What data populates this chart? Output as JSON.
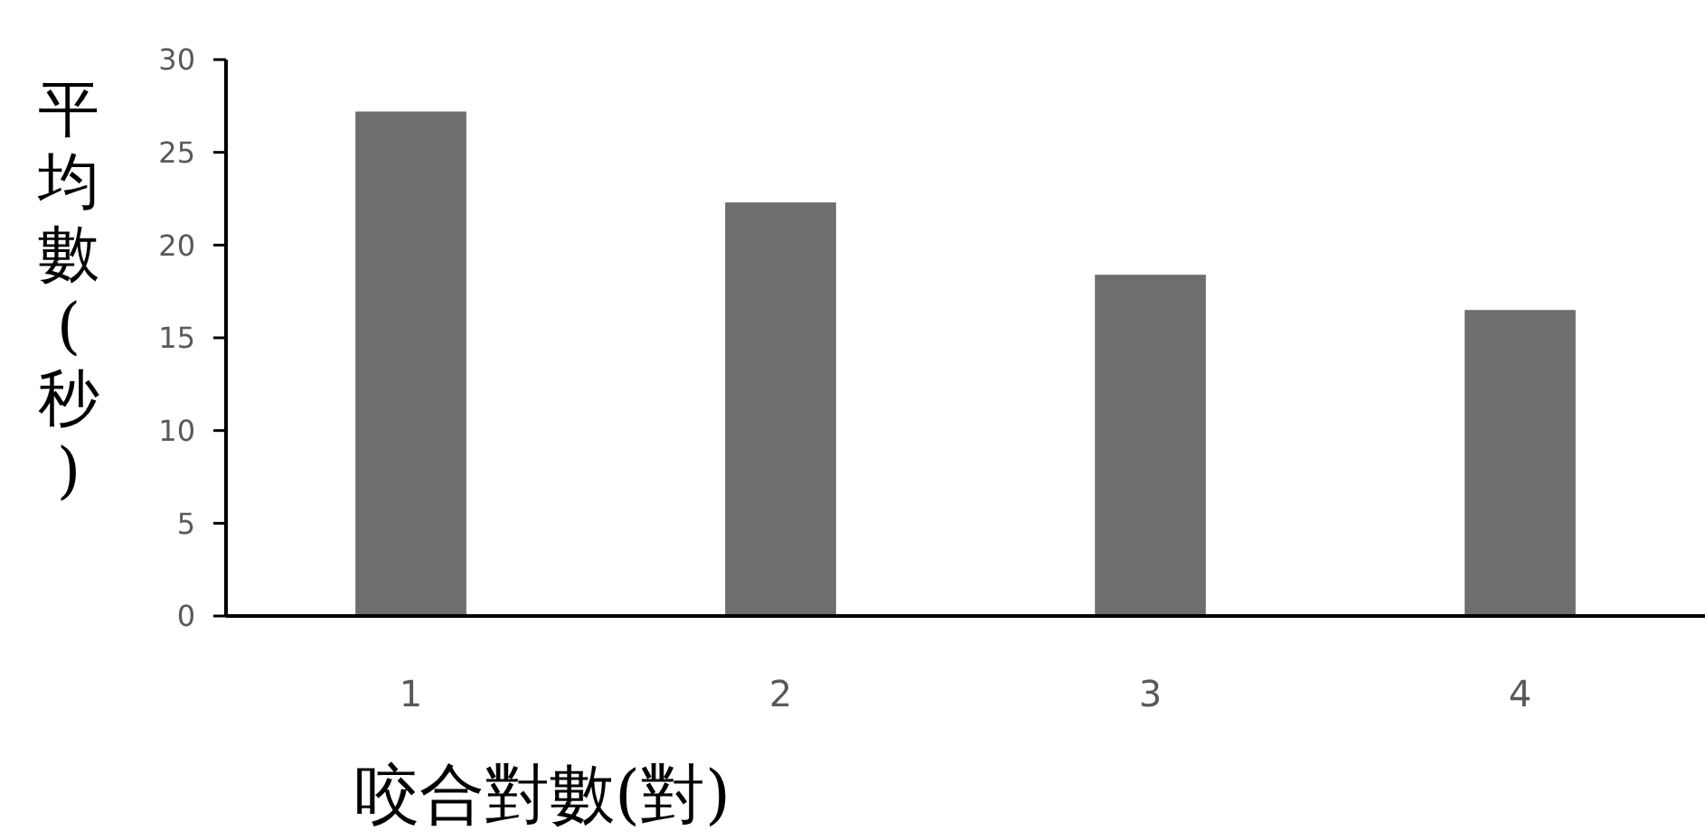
{
  "chart_data": {
    "type": "bar",
    "xlabel": "咬合對數(對)",
    "ylabel": "平均數(秒)",
    "categories": [
      "1",
      "2",
      "3",
      "4"
    ],
    "values": [
      27.2,
      22.3,
      18.4,
      16.5
    ],
    "color": "#6e6e6e",
    "ylim": [
      0,
      30
    ],
    "yticks": [
      0,
      5,
      10,
      15,
      20,
      25,
      30
    ]
  }
}
